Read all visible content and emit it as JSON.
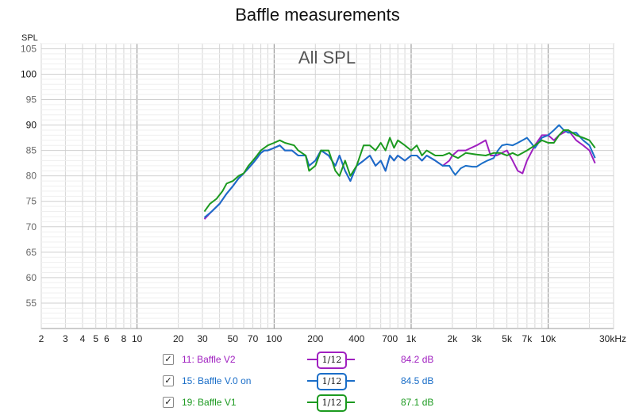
{
  "chart_data": {
    "type": "line",
    "title": "Baffle measurements",
    "subtitle": "All SPL",
    "ylabel": "SPL",
    "ylim": [
      50,
      106
    ],
    "y_ticks": [
      55,
      60,
      65,
      70,
      75,
      80,
      85,
      90,
      95,
      100,
      105
    ],
    "x_scale": "log",
    "xlim": [
      2,
      30000
    ],
    "x_ticks": [
      {
        "v": 2,
        "label": "2"
      },
      {
        "v": 3,
        "label": "3"
      },
      {
        "v": 4,
        "label": "4"
      },
      {
        "v": 5,
        "label": "5"
      },
      {
        "v": 6,
        "label": "6"
      },
      {
        "v": 8,
        "label": "8"
      },
      {
        "v": 10,
        "label": "10"
      },
      {
        "v": 20,
        "label": "20"
      },
      {
        "v": 30,
        "label": "30"
      },
      {
        "v": 50,
        "label": "50"
      },
      {
        "v": 70,
        "label": "70"
      },
      {
        "v": 100,
        "label": "100"
      },
      {
        "v": 200,
        "label": "200"
      },
      {
        "v": 400,
        "label": "400"
      },
      {
        "v": 700,
        "label": "700"
      },
      {
        "v": 1000,
        "label": "1k"
      },
      {
        "v": 2000,
        "label": "2k"
      },
      {
        "v": 3000,
        "label": "3k"
      },
      {
        "v": 5000,
        "label": "5k"
      },
      {
        "v": 7000,
        "label": "7k"
      },
      {
        "v": 10000,
        "label": "10k"
      },
      {
        "v": 30000,
        "label": "30kHz"
      }
    ],
    "grid": true,
    "series": [
      {
        "name": "11: Baffle V2",
        "color": "#a020c0",
        "smoothing": "1/12",
        "value_label": "84.2 dB",
        "points": [
          [
            31,
            71.5
          ],
          [
            35,
            73
          ],
          [
            40,
            74.5
          ],
          [
            45,
            76.5
          ],
          [
            50,
            78
          ],
          [
            55,
            79.5
          ],
          [
            60,
            80.5
          ],
          [
            65,
            81.5
          ],
          [
            70,
            82.5
          ],
          [
            75,
            83.5
          ],
          [
            80,
            84.5
          ],
          [
            85,
            85
          ],
          [
            90,
            85
          ],
          [
            100,
            85.5
          ],
          [
            110,
            86
          ],
          [
            120,
            85
          ],
          [
            135,
            85
          ],
          [
            150,
            84
          ],
          [
            170,
            84
          ],
          [
            180,
            82
          ],
          [
            200,
            83
          ],
          [
            220,
            85
          ],
          [
            250,
            84
          ],
          [
            280,
            82
          ],
          [
            300,
            84
          ],
          [
            330,
            81
          ],
          [
            360,
            79
          ],
          [
            400,
            82
          ],
          [
            450,
            83
          ],
          [
            500,
            84
          ],
          [
            550,
            82
          ],
          [
            600,
            83
          ],
          [
            650,
            81
          ],
          [
            700,
            84
          ],
          [
            750,
            83
          ],
          [
            800,
            84
          ],
          [
            900,
            83
          ],
          [
            1000,
            84
          ],
          [
            1100,
            84
          ],
          [
            1200,
            83
          ],
          [
            1300,
            84
          ],
          [
            1500,
            83
          ],
          [
            1700,
            82
          ],
          [
            1900,
            83
          ],
          [
            2000,
            84
          ],
          [
            2200,
            85
          ],
          [
            2500,
            85
          ],
          [
            3000,
            86
          ],
          [
            3500,
            87
          ],
          [
            3800,
            84
          ],
          [
            4200,
            84
          ],
          [
            5000,
            85
          ],
          [
            5500,
            83
          ],
          [
            6000,
            81
          ],
          [
            6500,
            80.5
          ],
          [
            7000,
            83
          ],
          [
            8000,
            86
          ],
          [
            9000,
            88
          ],
          [
            10000,
            88
          ],
          [
            11000,
            87
          ],
          [
            12000,
            88
          ],
          [
            14000,
            89
          ],
          [
            16000,
            87
          ],
          [
            18000,
            86
          ],
          [
            20000,
            85
          ],
          [
            22000,
            82.5
          ]
        ]
      },
      {
        "name": "15: Baffle V.0 on",
        "color": "#1a6ec8",
        "smoothing": "1/12",
        "value_label": "84.5 dB",
        "points": [
          [
            31,
            71.8
          ],
          [
            35,
            73
          ],
          [
            40,
            74.5
          ],
          [
            45,
            76.5
          ],
          [
            50,
            78
          ],
          [
            55,
            79.5
          ],
          [
            60,
            80.5
          ],
          [
            65,
            81.5
          ],
          [
            70,
            82.5
          ],
          [
            75,
            83.5
          ],
          [
            80,
            84.5
          ],
          [
            85,
            85
          ],
          [
            90,
            85
          ],
          [
            100,
            85.5
          ],
          [
            110,
            86
          ],
          [
            120,
            85
          ],
          [
            135,
            85
          ],
          [
            150,
            84
          ],
          [
            170,
            84
          ],
          [
            180,
            82
          ],
          [
            200,
            83
          ],
          [
            220,
            85
          ],
          [
            250,
            84
          ],
          [
            280,
            82
          ],
          [
            300,
            84
          ],
          [
            330,
            81
          ],
          [
            360,
            79
          ],
          [
            400,
            82
          ],
          [
            450,
            83
          ],
          [
            500,
            84
          ],
          [
            550,
            82
          ],
          [
            600,
            83
          ],
          [
            650,
            81
          ],
          [
            700,
            84
          ],
          [
            750,
            83
          ],
          [
            800,
            84
          ],
          [
            900,
            83
          ],
          [
            1000,
            84
          ],
          [
            1100,
            84
          ],
          [
            1200,
            83
          ],
          [
            1300,
            84
          ],
          [
            1500,
            83
          ],
          [
            1700,
            82
          ],
          [
            1900,
            82
          ],
          [
            2000,
            81
          ],
          [
            2100,
            80.2
          ],
          [
            2300,
            81.5
          ],
          [
            2500,
            82
          ],
          [
            2800,
            81.8
          ],
          [
            3000,
            81.8
          ],
          [
            3300,
            82.5
          ],
          [
            3600,
            83
          ],
          [
            4000,
            83.5
          ],
          [
            4300,
            85
          ],
          [
            4600,
            86
          ],
          [
            5000,
            86.2
          ],
          [
            5500,
            86
          ],
          [
            6000,
            86.5
          ],
          [
            6500,
            87
          ],
          [
            7000,
            87.5
          ],
          [
            7500,
            86.5
          ],
          [
            8000,
            85.5
          ],
          [
            8500,
            86.5
          ],
          [
            9000,
            87.5
          ],
          [
            10000,
            88
          ],
          [
            11000,
            89
          ],
          [
            12000,
            90
          ],
          [
            13000,
            89
          ],
          [
            14000,
            88.5
          ],
          [
            16000,
            88.5
          ],
          [
            18000,
            87
          ],
          [
            20000,
            86
          ],
          [
            22000,
            83.5
          ]
        ]
      },
      {
        "name": "19: Baffle V1",
        "color": "#1c9a20",
        "smoothing": "1/12",
        "value_label": "87.1 dB",
        "points": [
          [
            31,
            73
          ],
          [
            34,
            74.5
          ],
          [
            38,
            75.5
          ],
          [
            42,
            77
          ],
          [
            45,
            78.5
          ],
          [
            50,
            79
          ],
          [
            55,
            80
          ],
          [
            60,
            80.5
          ],
          [
            65,
            82
          ],
          [
            70,
            83
          ],
          [
            75,
            84
          ],
          [
            80,
            85
          ],
          [
            90,
            86
          ],
          [
            100,
            86.5
          ],
          [
            110,
            87
          ],
          [
            120,
            86.5
          ],
          [
            140,
            86
          ],
          [
            150,
            85
          ],
          [
            170,
            84
          ],
          [
            180,
            81
          ],
          [
            200,
            82
          ],
          [
            220,
            85
          ],
          [
            250,
            85
          ],
          [
            280,
            81
          ],
          [
            300,
            80
          ],
          [
            330,
            83
          ],
          [
            360,
            80
          ],
          [
            400,
            82
          ],
          [
            450,
            86
          ],
          [
            500,
            86
          ],
          [
            550,
            85
          ],
          [
            600,
            86.5
          ],
          [
            650,
            85
          ],
          [
            700,
            87.5
          ],
          [
            750,
            85.5
          ],
          [
            800,
            87
          ],
          [
            900,
            86
          ],
          [
            1000,
            85
          ],
          [
            1100,
            86
          ],
          [
            1200,
            84
          ],
          [
            1300,
            85
          ],
          [
            1500,
            84
          ],
          [
            1700,
            84
          ],
          [
            1900,
            84.5
          ],
          [
            2000,
            84
          ],
          [
            2200,
            83.5
          ],
          [
            2500,
            84.5
          ],
          [
            3000,
            84.2
          ],
          [
            3500,
            84
          ],
          [
            4000,
            84.5
          ],
          [
            4500,
            84.5
          ],
          [
            5000,
            84
          ],
          [
            5500,
            84.5
          ],
          [
            6000,
            84
          ],
          [
            6500,
            84.5
          ],
          [
            7000,
            85
          ],
          [
            8000,
            86
          ],
          [
            9000,
            87
          ],
          [
            10000,
            86.5
          ],
          [
            11000,
            86.5
          ],
          [
            12000,
            88
          ],
          [
            13000,
            89
          ],
          [
            14000,
            89
          ],
          [
            16000,
            88
          ],
          [
            18000,
            87.5
          ],
          [
            20000,
            87
          ],
          [
            22000,
            85.5
          ]
        ]
      }
    ]
  },
  "legend": [
    {
      "checked": true,
      "label": "11: Baffle V2",
      "value": "84.2 dB",
      "smoothing": "1/12"
    },
    {
      "checked": true,
      "label": "15: Baffle V.0 on",
      "value": "84.5 dB",
      "smoothing": "1/12"
    },
    {
      "checked": true,
      "label": "19: Baffle V1",
      "value": "87.1 dB",
      "smoothing": "1/12"
    }
  ],
  "checkmark_glyph": "✓"
}
